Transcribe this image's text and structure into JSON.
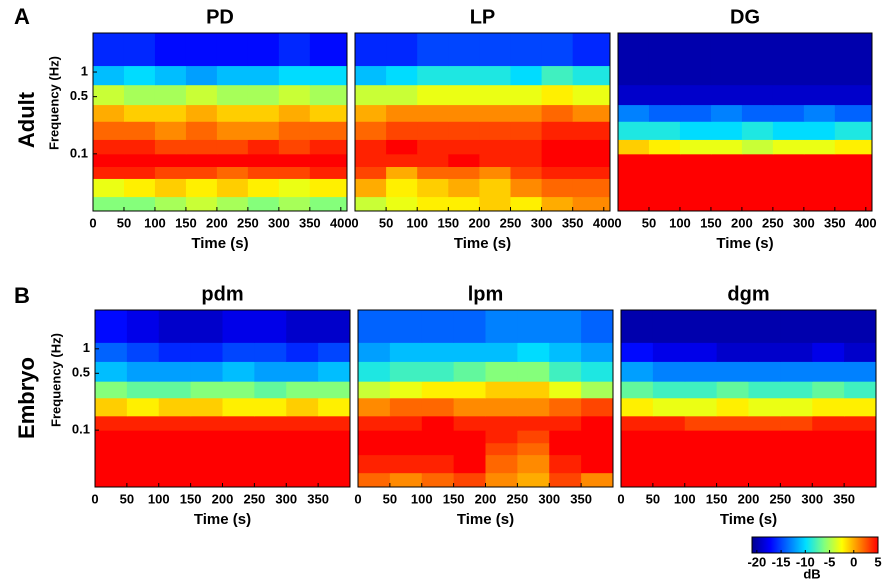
{
  "rows": [
    {
      "label": "A",
      "name": "Adult"
    },
    {
      "label": "B",
      "name": "Embryo"
    }
  ],
  "colorbar": {
    "label": "dB",
    "zlim": [
      -21,
      5
    ],
    "zticks": [
      -20,
      -15,
      -10,
      -5,
      0,
      5
    ],
    "colormap": [
      "#00008f",
      "#0000ff",
      "#0070ff",
      "#00e0ff",
      "#80ff80",
      "#ffff00",
      "#ff8000",
      "#ff0000"
    ]
  },
  "chart_data": [
    {
      "type": "heatmap",
      "title": "PD",
      "xlabel": "Time (s)",
      "ylabel": "Frequency (Hz)",
      "log_y": true,
      "xlim": [
        0,
        410
      ],
      "xticks": [
        0,
        50,
        100,
        150,
        200,
        250,
        300,
        350,
        400
      ],
      "ylim": [
        0.02,
        3
      ],
      "yticks": [
        0.1,
        0.5,
        1
      ],
      "x_edges": [
        0,
        50,
        100,
        150,
        200,
        250,
        300,
        350,
        410
      ],
      "y_edges": [
        0.02,
        0.03,
        0.05,
        0.07,
        0.1,
        0.15,
        0.25,
        0.4,
        0.7,
        1.2,
        3
      ],
      "z": [
        [
          -6,
          -6,
          -5,
          -4,
          -5,
          -6,
          -5,
          -6
        ],
        [
          -3,
          -2,
          -1,
          -2,
          -1,
          -2,
          -3,
          -2
        ],
        [
          4,
          4,
          3,
          3,
          2,
          3,
          3,
          4
        ],
        [
          5,
          5,
          5,
          5,
          5,
          5,
          5,
          5
        ],
        [
          4,
          4,
          3,
          3,
          3,
          4,
          3,
          4
        ],
        [
          2,
          2,
          1,
          2,
          1,
          1,
          2,
          2
        ],
        [
          0,
          -1,
          -1,
          0,
          -1,
          -1,
          0,
          -1
        ],
        [
          -4,
          -5,
          -5,
          -4,
          -5,
          -5,
          -4,
          -5
        ],
        [
          -11,
          -10,
          -11,
          -12,
          -11,
          -11,
          -10,
          -10
        ],
        [
          -16,
          -16,
          -17,
          -17,
          -17,
          -17,
          -16,
          -17
        ]
      ]
    },
    {
      "type": "heatmap",
      "title": "LP",
      "xlabel": "Time (s)",
      "log_y": true,
      "xlim": [
        0,
        410
      ],
      "xticks": [
        0,
        50,
        100,
        150,
        200,
        250,
        300,
        350,
        400
      ],
      "ylim": [
        0.02,
        3
      ],
      "x_edges": [
        0,
        50,
        100,
        150,
        200,
        250,
        300,
        350,
        410
      ],
      "y_edges": [
        0.02,
        0.03,
        0.05,
        0.07,
        0.1,
        0.15,
        0.25,
        0.4,
        0.7,
        1.2,
        3
      ],
      "z": [
        [
          -4,
          -3,
          -2,
          -2,
          -1,
          -2,
          0,
          1
        ],
        [
          0,
          -2,
          -1,
          0,
          -1,
          1,
          2,
          2
        ],
        [
          3,
          0,
          2,
          2,
          1,
          3,
          4,
          4
        ],
        [
          4,
          4,
          4,
          5,
          4,
          4,
          5,
          5
        ],
        [
          4,
          5,
          4,
          4,
          4,
          4,
          5,
          5
        ],
        [
          2,
          3,
          3,
          3,
          3,
          3,
          4,
          4
        ],
        [
          0,
          1,
          1,
          1,
          1,
          1,
          2,
          1
        ],
        [
          -4,
          -4,
          -3,
          -3,
          -3,
          -3,
          -2,
          -3
        ],
        [
          -11,
          -10,
          -9,
          -9,
          -9,
          -10,
          -8,
          -9
        ],
        [
          -16,
          -16,
          -15,
          -15,
          -15,
          -15,
          -15,
          -16
        ]
      ]
    },
    {
      "type": "heatmap",
      "title": "DG",
      "xlabel": "Time (s)",
      "log_y": true,
      "xlim": [
        0,
        410
      ],
      "xticks": [
        0,
        50,
        100,
        150,
        200,
        250,
        300,
        350,
        400
      ],
      "ylim": [
        0.02,
        3
      ],
      "x_edges": [
        0,
        50,
        100,
        150,
        200,
        250,
        300,
        350,
        410
      ],
      "y_edges": [
        0.02,
        0.03,
        0.05,
        0.07,
        0.1,
        0.15,
        0.25,
        0.4,
        0.7,
        1.2,
        3
      ],
      "z": [
        [
          5,
          5,
          5,
          5,
          5,
          5,
          5,
          5
        ],
        [
          5,
          5,
          5,
          5,
          5,
          5,
          5,
          5
        ],
        [
          5,
          5,
          5,
          5,
          5,
          5,
          5,
          5
        ],
        [
          5,
          5,
          5,
          5,
          5,
          5,
          5,
          5
        ],
        [
          -1,
          -2,
          -3,
          -3,
          -4,
          -3,
          -3,
          -2
        ],
        [
          -9,
          -9,
          -10,
          -10,
          -9,
          -10,
          -10,
          -9
        ],
        [
          -13,
          -14,
          -14,
          -13,
          -14,
          -14,
          -13,
          -14
        ],
        [
          -19,
          -19,
          -19,
          -19,
          -19,
          -19,
          -19,
          -19
        ],
        [
          -20,
          -20,
          -20,
          -20,
          -20,
          -20,
          -20,
          -20
        ],
        [
          -20,
          -20,
          -20,
          -20,
          -20,
          -20,
          -20,
          -20
        ]
      ]
    },
    {
      "type": "heatmap",
      "title": "pdm",
      "xlabel": "Time (s)",
      "ylabel": "Frequency (Hz)",
      "log_y": true,
      "xlim": [
        0,
        400
      ],
      "xticks": [
        0,
        50,
        100,
        150,
        200,
        250,
        300,
        350
      ],
      "ylim": [
        0.02,
        3
      ],
      "yticks": [
        0.1,
        0.5,
        1
      ],
      "x_edges": [
        0,
        50,
        100,
        150,
        200,
        250,
        300,
        350,
        400
      ],
      "y_edges": [
        0.02,
        0.03,
        0.05,
        0.07,
        0.1,
        0.15,
        0.25,
        0.4,
        0.7,
        1.2,
        3
      ],
      "z": [
        [
          5,
          5,
          5,
          5,
          5,
          5,
          5,
          5
        ],
        [
          5,
          5,
          5,
          5,
          5,
          5,
          5,
          5
        ],
        [
          5,
          5,
          5,
          5,
          5,
          5,
          5,
          5
        ],
        [
          5,
          5,
          5,
          5,
          5,
          5,
          5,
          5
        ],
        [
          4,
          4,
          4,
          4,
          4,
          4,
          4,
          4
        ],
        [
          -1,
          -2,
          -1,
          -1,
          -2,
          -2,
          -1,
          -2
        ],
        [
          -6,
          -7,
          -7,
          -6,
          -6,
          -7,
          -6,
          -6
        ],
        [
          -11,
          -12,
          -12,
          -12,
          -11,
          -12,
          -12,
          -11
        ],
        [
          -14,
          -15,
          -16,
          -16,
          -15,
          -15,
          -16,
          -15
        ],
        [
          -17,
          -18,
          -19,
          -19,
          -18,
          -18,
          -19,
          -19
        ]
      ]
    },
    {
      "type": "heatmap",
      "title": "lpm",
      "xlabel": "Time (s)",
      "log_y": true,
      "xlim": [
        0,
        400
      ],
      "xticks": [
        0,
        50,
        100,
        150,
        200,
        250,
        300,
        350
      ],
      "ylim": [
        0.02,
        3
      ],
      "x_edges": [
        0,
        50,
        100,
        150,
        200,
        250,
        300,
        350,
        400
      ],
      "y_edges": [
        0.02,
        0.03,
        0.05,
        0.07,
        0.1,
        0.15,
        0.25,
        0.4,
        0.7,
        1.2,
        3
      ],
      "z": [
        [
          2,
          1,
          2,
          3,
          1,
          0,
          3,
          1
        ],
        [
          4,
          4,
          4,
          5,
          2,
          1,
          4,
          5
        ],
        [
          5,
          5,
          5,
          5,
          3,
          2,
          5,
          5
        ],
        [
          5,
          5,
          5,
          5,
          4,
          3,
          5,
          5
        ],
        [
          4,
          4,
          5,
          4,
          4,
          4,
          4,
          5
        ],
        [
          1,
          2,
          2,
          1,
          1,
          1,
          2,
          3
        ],
        [
          -4,
          -3,
          -2,
          -2,
          -1,
          -1,
          -3,
          -5
        ],
        [
          -9,
          -8,
          -8,
          -7,
          -6,
          -6,
          -8,
          -9
        ],
        [
          -12,
          -11,
          -11,
          -11,
          -11,
          -10,
          -11,
          -12
        ],
        [
          -14,
          -14,
          -14,
          -14,
          -13,
          -13,
          -13,
          -14
        ]
      ]
    },
    {
      "type": "heatmap",
      "title": "dgm",
      "xlabel": "Time (s)",
      "log_y": true,
      "xlim": [
        0,
        400
      ],
      "xticks": [
        0,
        50,
        100,
        150,
        200,
        250,
        300,
        350
      ],
      "ylim": [
        0.02,
        3
      ],
      "x_edges": [
        0,
        50,
        100,
        150,
        200,
        250,
        300,
        350,
        400
      ],
      "y_edges": [
        0.02,
        0.03,
        0.05,
        0.07,
        0.1,
        0.15,
        0.25,
        0.4,
        0.7,
        1.2,
        3
      ],
      "z": [
        [
          5,
          5,
          5,
          5,
          5,
          5,
          5,
          5
        ],
        [
          5,
          5,
          5,
          5,
          5,
          5,
          5,
          5
        ],
        [
          5,
          5,
          5,
          5,
          5,
          5,
          5,
          5
        ],
        [
          5,
          5,
          5,
          5,
          5,
          5,
          5,
          5
        ],
        [
          4,
          4,
          3,
          3,
          3,
          3,
          4,
          4
        ],
        [
          -2,
          -3,
          -3,
          -2,
          -3,
          -3,
          -2,
          -2
        ],
        [
          -7,
          -8,
          -8,
          -7,
          -8,
          -8,
          -7,
          -8
        ],
        [
          -12,
          -13,
          -13,
          -13,
          -13,
          -13,
          -13,
          -13
        ],
        [
          -17,
          -18,
          -18,
          -19,
          -19,
          -19,
          -18,
          -19
        ],
        [
          -20,
          -20,
          -20,
          -20,
          -20,
          -20,
          -20,
          -20
        ]
      ]
    }
  ]
}
